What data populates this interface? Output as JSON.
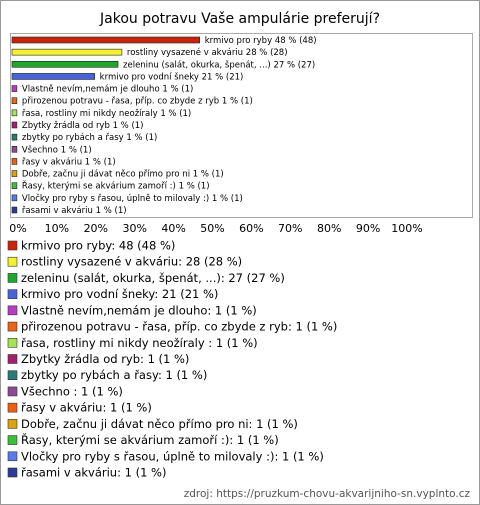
{
  "chart_data": {
    "type": "bar",
    "orientation": "horizontal",
    "title": "Jakou potravu Vaše ampulárie preferují?",
    "categories": [
      "krmivo pro ryby",
      "rostliny vysazené v akváriu",
      "zeleninu (salát, okurka, špenát, ...)",
      "krmivo pro vodní šneky",
      "Vlastně nevím,nemám je dlouho",
      "přirozenou potravu - řasa, příp. co zbyde z ryb",
      "řasa, rostliny mi nikdy neožíraly ",
      "Zbytky žrádla od ryb",
      "zbytky po rybách a řasy",
      "Všechno ",
      "řasy v akváriu",
      "Dobře, začnu ji dávat něco přímo pro ni",
      "Řasy, kterými se akvárium zamoří :)",
      "Vločky pro ryby s řasou, úplně to milovaly :)",
      "řasami v akváriu"
    ],
    "values": [
      48,
      28,
      27,
      21,
      1,
      1,
      1,
      1,
      1,
      1,
      1,
      1,
      1,
      1,
      1
    ],
    "value_labels": [
      "48 % (48)",
      "28 % (28)",
      "27 % (27)",
      "21 % (21)",
      "1 % (1)",
      "1 % (1)",
      "1 % (1)",
      "1 % (1)",
      "1 % (1)",
      "1 % (1)",
      "1 % (1)",
      "1 % (1)",
      "1 % (1)",
      "1 % (1)",
      "1 % (1)"
    ],
    "legend_labels": [
      "krmivo pro ryby: 48 (48 %)",
      "rostliny vysazené v akváriu: 28 (28 %)",
      "zeleninu (salát, okurka, špenát, ...): 27 (27 %)",
      "krmivo pro vodní šneky: 21 (21 %)",
      "Vlastně nevím,nemám je dlouho: 1 (1 %)",
      "přirozenou potravu - řasa, příp. co zbyde z ryb: 1 (1 %)",
      "řasa, rostliny mi nikdy neožíraly : 1 (1 %)",
      "Zbytky žrádla od ryb: 1 (1 %)",
      "zbytky po rybách a řasy: 1 (1 %)",
      "Všechno : 1 (1 %)",
      "řasy v akváriu: 1 (1 %)",
      "Dobře, začnu ji dávat něco přímo pro ni: 1 (1 %)",
      "Řasy, kterými se akvárium zamoří :): 1 (1 %)",
      "Vločky pro ryby s řasou, úplně to milovaly :): 1 (1 %)",
      "řasami v akváriu: 1 (1 %)"
    ],
    "colors": [
      "#c8240c",
      "#f4f032",
      "#22a52a",
      "#4a64d8",
      "#b83cc0",
      "#e8661a",
      "#a6e35a",
      "#a0226e",
      "#2a7a78",
      "#8a4a94",
      "#e86214",
      "#d8a414",
      "#3cc03c",
      "#5a7ae8",
      "#2e3c94"
    ],
    "xlim": [
      0,
      118
    ],
    "xticks": [
      {
        "value": 0,
        "label": "0%"
      },
      {
        "value": 10,
        "label": "10%"
      },
      {
        "value": 20,
        "label": "20%"
      },
      {
        "value": 30,
        "label": "30%"
      },
      {
        "value": 40,
        "label": "40%"
      },
      {
        "value": 50,
        "label": "50%"
      },
      {
        "value": 60,
        "label": "60%"
      },
      {
        "value": 70,
        "label": "70%"
      },
      {
        "value": 80,
        "label": "80%"
      },
      {
        "value": 90,
        "label": "90%"
      },
      {
        "value": 100,
        "label": "100%"
      }
    ],
    "source": "zdroj: https://pruzkum-chovu-akvarijniho-sn.vyplnto.cz"
  }
}
